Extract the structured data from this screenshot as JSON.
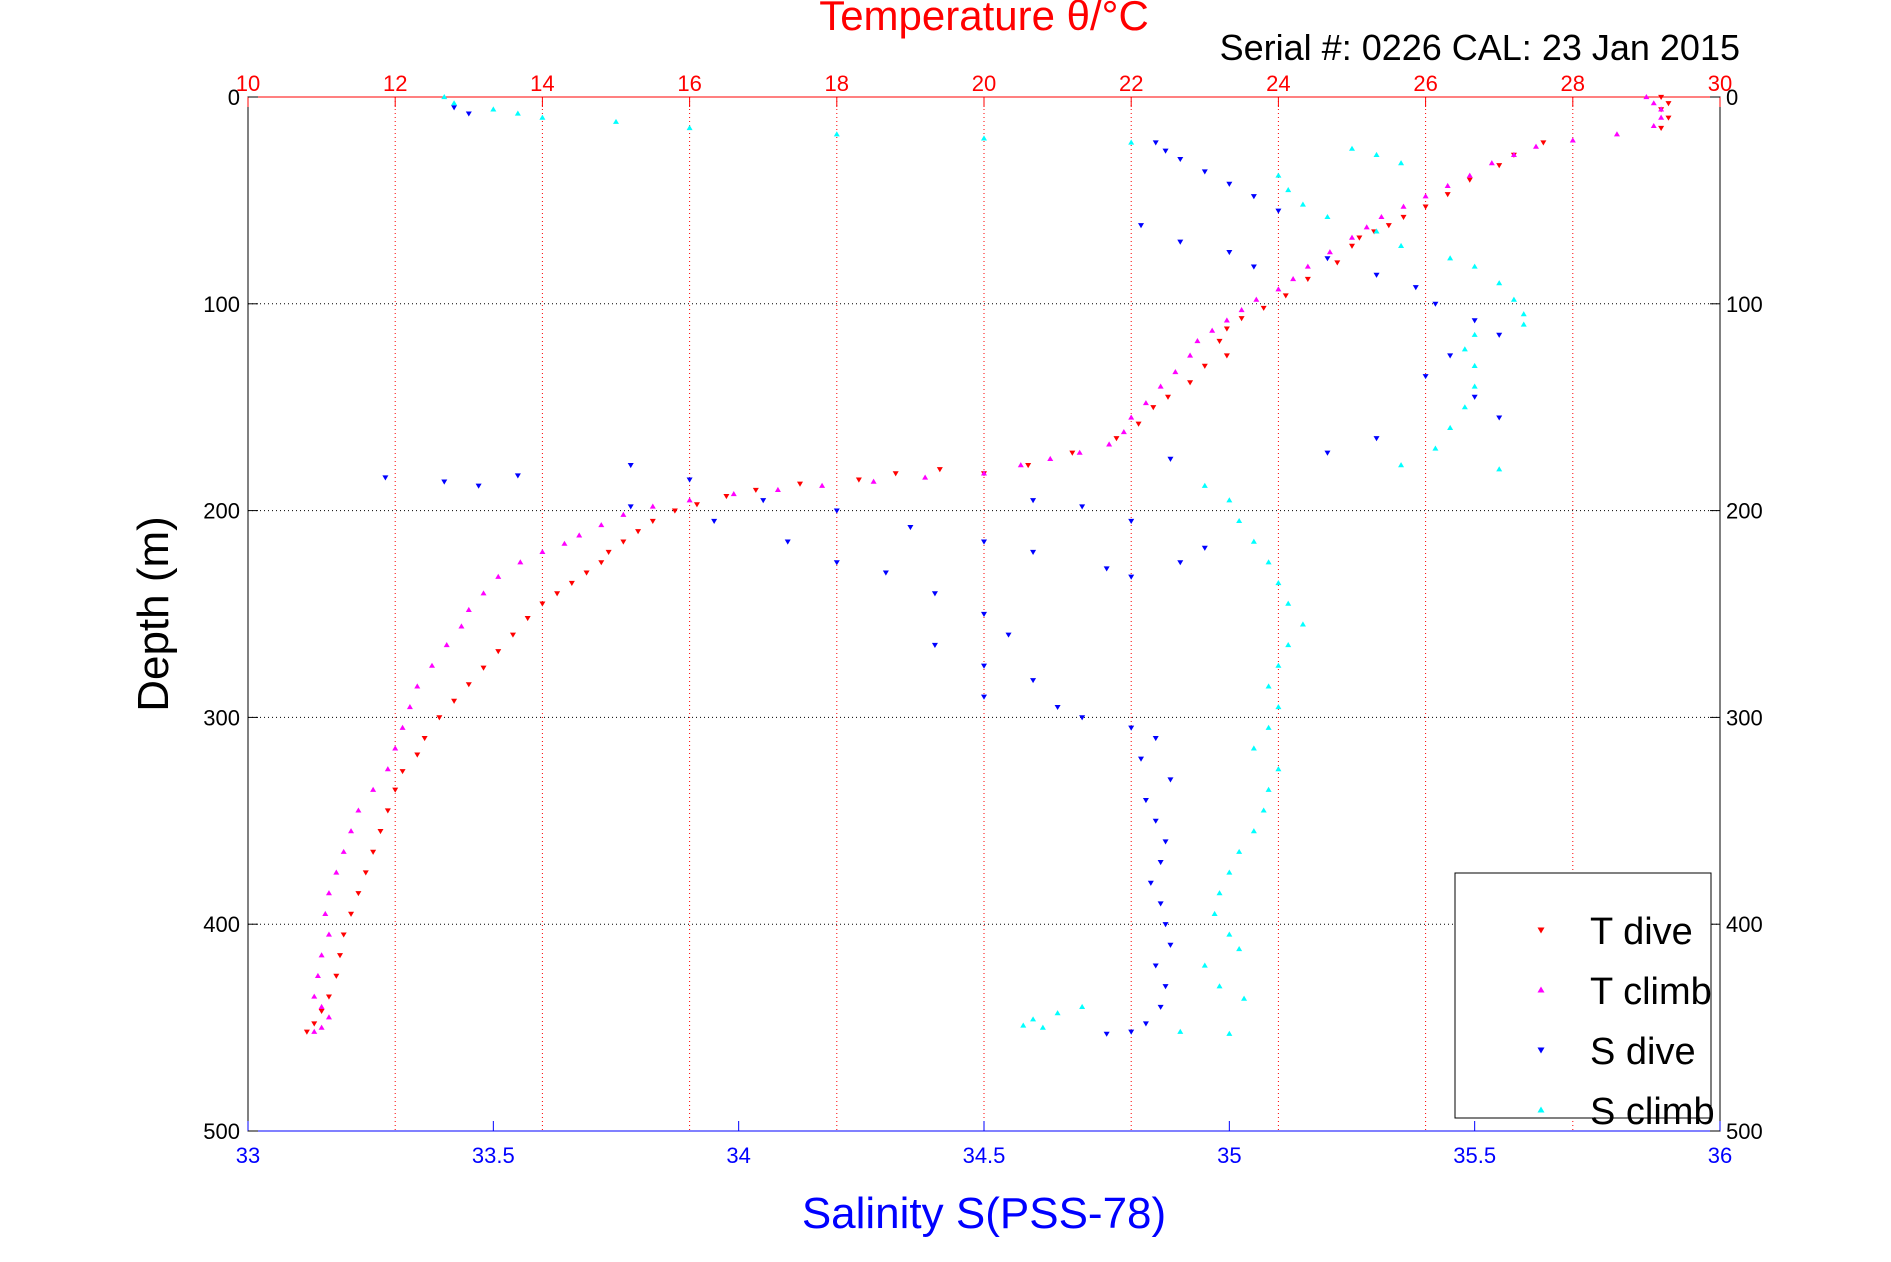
{
  "chart_data": {
    "type": "scatter",
    "title": "Temperature θ/°C",
    "subtitle": "Serial #: 0226  CAL: 23 Jan 2015",
    "xlabel": "Salinity S(PSS-78)",
    "ylabel": "Depth (m)",
    "x_ticks": [
      "33",
      "33.5",
      "34",
      "34.5",
      "35",
      "35.5",
      "36"
    ],
    "x_top_ticks": [
      "10",
      "12",
      "14",
      "16",
      "18",
      "20",
      "22",
      "24",
      "26",
      "28",
      "30"
    ],
    "y_ticks": [
      "0",
      "100",
      "200",
      "300",
      "400",
      "500"
    ],
    "xlim": [
      33,
      36
    ],
    "x_top_lim": [
      10,
      30
    ],
    "ylim": [
      0,
      500
    ],
    "y_reversed": true,
    "grid": true,
    "legend_position": "bottom-right",
    "colors": {
      "t_dive": "#ff0000",
      "t_climb": "#ff00ff",
      "s_dive": "#0000ff",
      "s_climb": "#00ffff",
      "temperature_axis": "#ff0000",
      "salinity_axis": "#0000ff"
    },
    "series": [
      {
        "name": "T dive",
        "axis": "temperature",
        "marker": "triangle-down",
        "points": [
          [
            29.2,
            0
          ],
          [
            29.3,
            3
          ],
          [
            29.2,
            6
          ],
          [
            29.3,
            10
          ],
          [
            29.2,
            15
          ],
          [
            27.6,
            22
          ],
          [
            27.2,
            28
          ],
          [
            27.0,
            33
          ],
          [
            26.6,
            40
          ],
          [
            26.3,
            47
          ],
          [
            26.0,
            53
          ],
          [
            25.7,
            58
          ],
          [
            25.5,
            62
          ],
          [
            25.3,
            65
          ],
          [
            25.1,
            68
          ],
          [
            25.0,
            72
          ],
          [
            24.8,
            80
          ],
          [
            24.4,
            88
          ],
          [
            24.1,
            96
          ],
          [
            23.8,
            102
          ],
          [
            23.5,
            107
          ],
          [
            23.3,
            112
          ],
          [
            23.2,
            118
          ],
          [
            23.3,
            125
          ],
          [
            23.0,
            130
          ],
          [
            22.8,
            138
          ],
          [
            22.5,
            145
          ],
          [
            22.3,
            150
          ],
          [
            22.1,
            158
          ],
          [
            21.8,
            165
          ],
          [
            21.2,
            172
          ],
          [
            20.6,
            178
          ],
          [
            20.0,
            182
          ],
          [
            19.4,
            180
          ],
          [
            18.8,
            182
          ],
          [
            18.3,
            185
          ],
          [
            17.5,
            187
          ],
          [
            16.9,
            190
          ],
          [
            16.5,
            193
          ],
          [
            16.1,
            197
          ],
          [
            15.8,
            200
          ],
          [
            15.5,
            205
          ],
          [
            15.3,
            210
          ],
          [
            15.1,
            215
          ],
          [
            14.9,
            220
          ],
          [
            14.8,
            225
          ],
          [
            14.6,
            230
          ],
          [
            14.4,
            235
          ],
          [
            14.2,
            240
          ],
          [
            14.0,
            245
          ],
          [
            13.8,
            252
          ],
          [
            13.6,
            260
          ],
          [
            13.4,
            268
          ],
          [
            13.2,
            276
          ],
          [
            13.0,
            284
          ],
          [
            12.8,
            292
          ],
          [
            12.6,
            300
          ],
          [
            12.4,
            310
          ],
          [
            12.3,
            318
          ],
          [
            12.1,
            326
          ],
          [
            12.0,
            335
          ],
          [
            11.9,
            345
          ],
          [
            11.8,
            355
          ],
          [
            11.7,
            365
          ],
          [
            11.6,
            375
          ],
          [
            11.5,
            385
          ],
          [
            11.4,
            395
          ],
          [
            11.3,
            405
          ],
          [
            11.25,
            415
          ],
          [
            11.2,
            425
          ],
          [
            11.1,
            435
          ],
          [
            11.0,
            442
          ],
          [
            10.9,
            448
          ],
          [
            10.8,
            452
          ]
        ]
      },
      {
        "name": "T climb",
        "axis": "temperature",
        "marker": "triangle-up",
        "points": [
          [
            29.0,
            0
          ],
          [
            29.1,
            3
          ],
          [
            29.2,
            6
          ],
          [
            29.2,
            10
          ],
          [
            29.1,
            14
          ],
          [
            28.6,
            18
          ],
          [
            28.0,
            21
          ],
          [
            27.5,
            24
          ],
          [
            27.2,
            28
          ],
          [
            26.9,
            32
          ],
          [
            26.6,
            38
          ],
          [
            26.3,
            43
          ],
          [
            26.0,
            48
          ],
          [
            25.7,
            53
          ],
          [
            25.4,
            58
          ],
          [
            25.2,
            63
          ],
          [
            25.0,
            68
          ],
          [
            24.7,
            75
          ],
          [
            24.4,
            82
          ],
          [
            24.2,
            88
          ],
          [
            24.0,
            93
          ],
          [
            23.7,
            98
          ],
          [
            23.5,
            103
          ],
          [
            23.3,
            108
          ],
          [
            23.1,
            113
          ],
          [
            22.9,
            118
          ],
          [
            22.8,
            125
          ],
          [
            22.6,
            133
          ],
          [
            22.4,
            140
          ],
          [
            22.2,
            148
          ],
          [
            22.0,
            155
          ],
          [
            21.9,
            162
          ],
          [
            21.7,
            168
          ],
          [
            21.3,
            172
          ],
          [
            20.9,
            175
          ],
          [
            20.5,
            178
          ],
          [
            20.0,
            182
          ],
          [
            19.2,
            184
          ],
          [
            18.5,
            186
          ],
          [
            17.8,
            188
          ],
          [
            17.2,
            190
          ],
          [
            16.6,
            192
          ],
          [
            16.0,
            195
          ],
          [
            15.5,
            198
          ],
          [
            15.1,
            202
          ],
          [
            14.8,
            207
          ],
          [
            14.5,
            212
          ],
          [
            14.3,
            216
          ],
          [
            14.0,
            220
          ],
          [
            13.7,
            225
          ],
          [
            13.4,
            232
          ],
          [
            13.2,
            240
          ],
          [
            13.0,
            248
          ],
          [
            12.9,
            256
          ],
          [
            12.7,
            265
          ],
          [
            12.5,
            275
          ],
          [
            12.3,
            285
          ],
          [
            12.2,
            295
          ],
          [
            12.1,
            305
          ],
          [
            12.0,
            315
          ],
          [
            11.9,
            325
          ],
          [
            11.7,
            335
          ],
          [
            11.5,
            345
          ],
          [
            11.4,
            355
          ],
          [
            11.3,
            365
          ],
          [
            11.2,
            375
          ],
          [
            11.1,
            385
          ],
          [
            11.05,
            395
          ],
          [
            11.1,
            405
          ],
          [
            11.0,
            415
          ],
          [
            10.95,
            425
          ],
          [
            10.9,
            435
          ],
          [
            11.0,
            440
          ],
          [
            11.1,
            445
          ],
          [
            11.0,
            450
          ],
          [
            10.9,
            452
          ]
        ]
      },
      {
        "name": "S dive",
        "axis": "salinity",
        "marker": "triangle-down",
        "points": [
          [
            33.42,
            5
          ],
          [
            33.45,
            8
          ],
          [
            34.85,
            22
          ],
          [
            34.87,
            26
          ],
          [
            34.9,
            30
          ],
          [
            34.95,
            36
          ],
          [
            35.0,
            42
          ],
          [
            35.05,
            48
          ],
          [
            35.1,
            55
          ],
          [
            34.82,
            62
          ],
          [
            34.9,
            70
          ],
          [
            35.0,
            75
          ],
          [
            35.05,
            82
          ],
          [
            35.2,
            78
          ],
          [
            35.3,
            86
          ],
          [
            35.38,
            92
          ],
          [
            35.42,
            100
          ],
          [
            35.5,
            108
          ],
          [
            35.55,
            115
          ],
          [
            35.45,
            125
          ],
          [
            35.4,
            135
          ],
          [
            35.5,
            145
          ],
          [
            35.55,
            155
          ],
          [
            35.3,
            165
          ],
          [
            35.2,
            172
          ],
          [
            34.88,
            175
          ],
          [
            33.28,
            184
          ],
          [
            33.4,
            186
          ],
          [
            33.47,
            188
          ],
          [
            33.55,
            183
          ],
          [
            33.78,
            178
          ],
          [
            33.9,
            185
          ],
          [
            34.05,
            195
          ],
          [
            34.2,
            200
          ],
          [
            34.35,
            208
          ],
          [
            34.5,
            215
          ],
          [
            34.6,
            220
          ],
          [
            34.75,
            228
          ],
          [
            34.8,
            232
          ],
          [
            34.9,
            225
          ],
          [
            34.95,
            218
          ],
          [
            34.8,
            205
          ],
          [
            34.7,
            198
          ],
          [
            34.6,
            195
          ],
          [
            33.78,
            198
          ],
          [
            33.95,
            205
          ],
          [
            34.1,
            215
          ],
          [
            34.2,
            225
          ],
          [
            34.3,
            230
          ],
          [
            34.4,
            240
          ],
          [
            34.5,
            250
          ],
          [
            34.55,
            260
          ],
          [
            34.4,
            265
          ],
          [
            34.5,
            275
          ],
          [
            34.6,
            282
          ],
          [
            34.5,
            290
          ],
          [
            34.65,
            295
          ],
          [
            34.7,
            300
          ],
          [
            34.8,
            305
          ],
          [
            34.85,
            310
          ],
          [
            34.82,
            320
          ],
          [
            34.88,
            330
          ],
          [
            34.83,
            340
          ],
          [
            34.85,
            350
          ],
          [
            34.87,
            360
          ],
          [
            34.86,
            370
          ],
          [
            34.84,
            380
          ],
          [
            34.86,
            390
          ],
          [
            34.87,
            400
          ],
          [
            34.88,
            410
          ],
          [
            34.85,
            420
          ],
          [
            34.87,
            430
          ],
          [
            34.86,
            440
          ],
          [
            34.83,
            448
          ],
          [
            34.8,
            452
          ],
          [
            34.75,
            453
          ]
        ]
      },
      {
        "name": "S climb",
        "axis": "salinity",
        "marker": "triangle-up",
        "points": [
          [
            33.4,
            0
          ],
          [
            33.42,
            3
          ],
          [
            33.5,
            6
          ],
          [
            33.55,
            8
          ],
          [
            33.6,
            10
          ],
          [
            33.75,
            12
          ],
          [
            33.9,
            15
          ],
          [
            34.2,
            18
          ],
          [
            34.5,
            20
          ],
          [
            34.8,
            22
          ],
          [
            35.25,
            25
          ],
          [
            35.3,
            28
          ],
          [
            35.35,
            32
          ],
          [
            35.1,
            38
          ],
          [
            35.12,
            45
          ],
          [
            35.15,
            52
          ],
          [
            35.2,
            58
          ],
          [
            35.3,
            65
          ],
          [
            35.35,
            72
          ],
          [
            35.45,
            78
          ],
          [
            35.5,
            82
          ],
          [
            35.55,
            90
          ],
          [
            35.58,
            98
          ],
          [
            35.6,
            105
          ],
          [
            35.6,
            110
          ],
          [
            35.5,
            115
          ],
          [
            35.48,
            122
          ],
          [
            35.5,
            130
          ],
          [
            35.5,
            140
          ],
          [
            35.48,
            150
          ],
          [
            35.45,
            160
          ],
          [
            35.42,
            170
          ],
          [
            35.35,
            178
          ],
          [
            35.55,
            180
          ],
          [
            34.95,
            188
          ],
          [
            35.0,
            195
          ],
          [
            35.02,
            205
          ],
          [
            35.05,
            215
          ],
          [
            35.08,
            225
          ],
          [
            35.1,
            235
          ],
          [
            35.12,
            245
          ],
          [
            35.15,
            255
          ],
          [
            35.12,
            265
          ],
          [
            35.1,
            275
          ],
          [
            35.08,
            285
          ],
          [
            35.1,
            295
          ],
          [
            35.08,
            305
          ],
          [
            35.05,
            315
          ],
          [
            35.1,
            325
          ],
          [
            35.08,
            335
          ],
          [
            35.07,
            345
          ],
          [
            35.05,
            355
          ],
          [
            35.02,
            365
          ],
          [
            35.0,
            375
          ],
          [
            34.98,
            385
          ],
          [
            34.97,
            395
          ],
          [
            35.0,
            405
          ],
          [
            35.02,
            412
          ],
          [
            34.95,
            420
          ],
          [
            34.98,
            430
          ],
          [
            35.03,
            436
          ],
          [
            34.7,
            440
          ],
          [
            34.65,
            443
          ],
          [
            34.6,
            446
          ],
          [
            34.58,
            449
          ],
          [
            34.62,
            450
          ],
          [
            34.9,
            452
          ],
          [
            35.0,
            453
          ]
        ]
      }
    ]
  }
}
